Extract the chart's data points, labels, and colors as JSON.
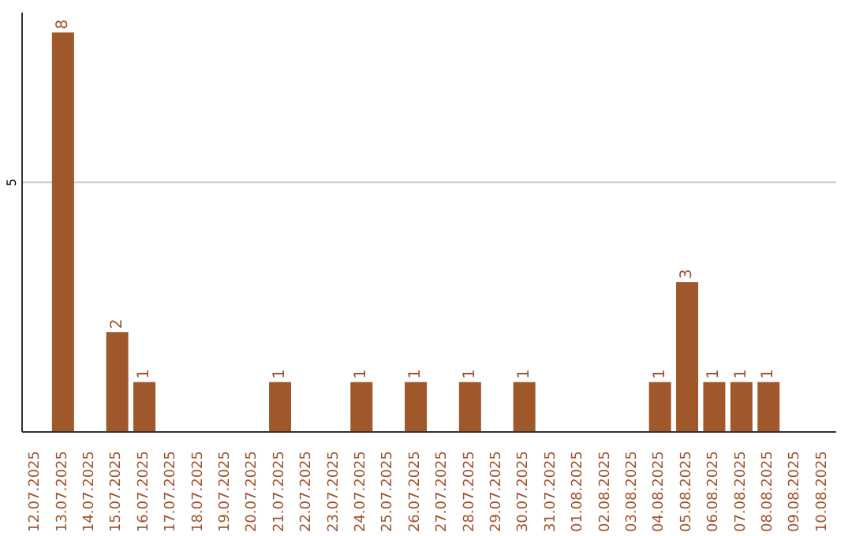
{
  "chart_data": {
    "type": "bar",
    "categories": [
      "12.07.2025",
      "13.07.2025",
      "14.07.2025",
      "15.07.2025",
      "16.07.2025",
      "17.07.2025",
      "18.07.2025",
      "19.07.2025",
      "20.07.2025",
      "21.07.2025",
      "22.07.2025",
      "23.07.2025",
      "24.07.2025",
      "25.07.2025",
      "26.07.2025",
      "27.07.2025",
      "28.07.2025",
      "29.07.2025",
      "30.07.2025",
      "31.07.2025",
      "01.08.2025",
      "02.08.2025",
      "03.08.2025",
      "04.08.2025",
      "05.08.2025",
      "06.08.2025",
      "07.08.2025",
      "08.08.2025",
      "09.08.2025",
      "10.08.2025"
    ],
    "values": [
      null,
      8,
      null,
      2,
      1,
      null,
      null,
      null,
      null,
      1,
      null,
      null,
      1,
      null,
      1,
      null,
      1,
      null,
      1,
      null,
      null,
      null,
      null,
      1,
      3,
      1,
      1,
      1,
      null,
      null
    ],
    "color": "#a0582a",
    "ylim": [
      0,
      8.4
    ],
    "yticks": [
      5
    ],
    "grid": "y",
    "data_labels": true
  }
}
